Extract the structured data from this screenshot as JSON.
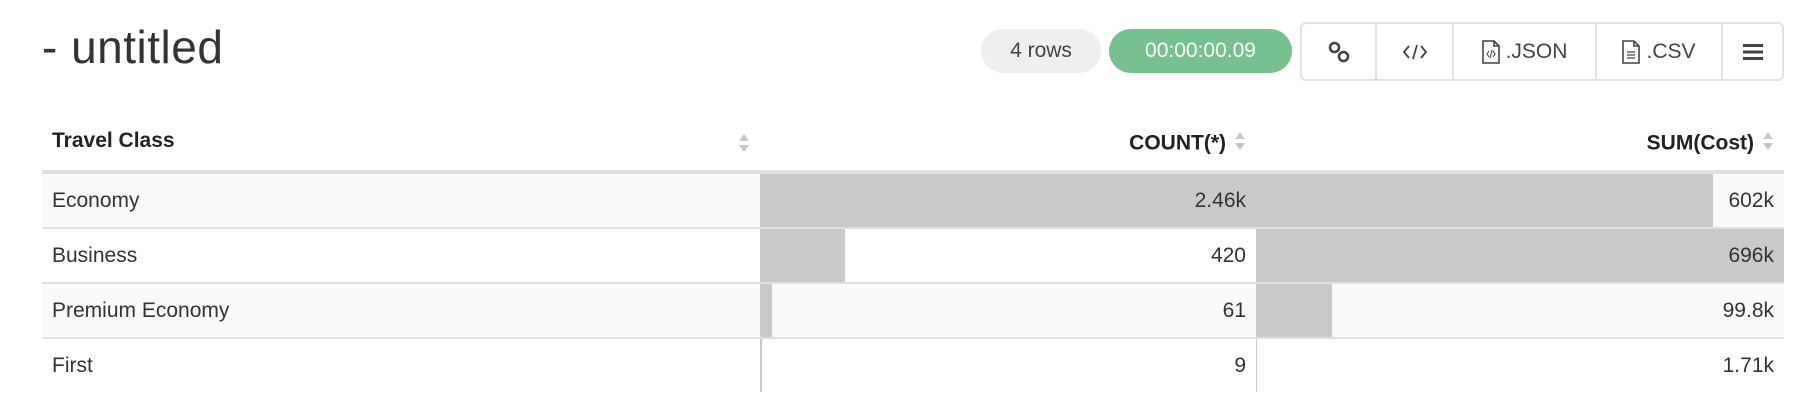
{
  "header": {
    "title": "- untitled",
    "row_count": "4 rows",
    "duration": "00:00:00.09"
  },
  "toolbar": {
    "buttons": [
      {
        "icon": "link-icon",
        "label": ""
      },
      {
        "icon": "code-icon",
        "label": ""
      },
      {
        "icon": "json-file-icon",
        "label": ".JSON"
      },
      {
        "icon": "csv-file-icon",
        "label": ".CSV"
      },
      {
        "icon": "menu-icon",
        "label": ""
      }
    ]
  },
  "colors": {
    "duration_pill": "#77c08f",
    "bar": "#c9c9c9"
  },
  "table": {
    "columns": [
      "Travel Class",
      "COUNT(*)",
      "SUM(Cost)"
    ],
    "rows": [
      {
        "travel_class": "Economy",
        "count": "2.46k",
        "count_value": 2460,
        "sum": "602k",
        "sum_value": 602000
      },
      {
        "travel_class": "Business",
        "count": "420",
        "count_value": 420,
        "sum": "696k",
        "sum_value": 696000
      },
      {
        "travel_class": "Premium Economy",
        "count": "61",
        "count_value": 61,
        "sum": "99.8k",
        "sum_value": 99800
      },
      {
        "travel_class": "First",
        "count": "9",
        "count_value": 9,
        "sum": "1.71k",
        "sum_value": 1710
      }
    ]
  }
}
